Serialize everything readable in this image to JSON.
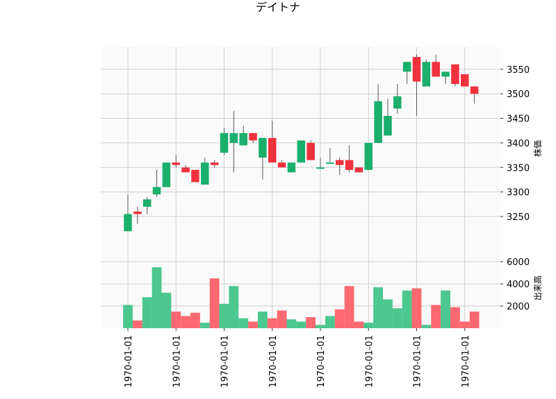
{
  "chart_data": {
    "type": "candlestick",
    "title": "デイトナ",
    "price_panel": {
      "ylabel": "株価",
      "ylim": [
        3185,
        3595
      ],
      "yticks": [
        3250,
        3300,
        3350,
        3400,
        3450,
        3500,
        3550
      ],
      "grid": true
    },
    "volume_panel": {
      "ylabel": "出来高",
      "ylim": [
        0,
        7200
      ],
      "yticks": [
        2000,
        4000,
        6000
      ],
      "grid": true
    },
    "x_tick_labels": [
      "1970-01-01",
      "1970-01-01",
      "1970-01-01",
      "1970-01-01",
      "1970-01-01",
      "1970-01-01",
      "1970-01-01",
      "1970-01-01"
    ],
    "x_tick_positions": [
      0,
      5,
      10,
      15,
      20,
      25,
      30,
      35
    ],
    "colors": {
      "up": "#1aaf6c",
      "down": "#f0313e",
      "volume_up": "#4cc790",
      "volume_down": "#fc6970",
      "wick": "#555555",
      "panel_bg": "#fafafa",
      "grid": "#d0d0d0"
    },
    "candles": [
      {
        "o": 3220,
        "h": 3295,
        "l": 3220,
        "c": 3255,
        "v": 2100
      },
      {
        "o": 3260,
        "h": 3270,
        "l": 3235,
        "c": 3255,
        "v": 700
      },
      {
        "o": 3270,
        "h": 3290,
        "l": 3255,
        "c": 3285,
        "v": 2800
      },
      {
        "o": 3295,
        "h": 3345,
        "l": 3290,
        "c": 3310,
        "v": 5500
      },
      {
        "o": 3310,
        "h": 3360,
        "l": 3310,
        "c": 3360,
        "v": 3200
      },
      {
        "o": 3360,
        "h": 3375,
        "l": 3350,
        "c": 3355,
        "v": 1500
      },
      {
        "o": 3350,
        "h": 3355,
        "l": 3340,
        "c": 3340,
        "v": 1100
      },
      {
        "o": 3345,
        "h": 3345,
        "l": 3320,
        "c": 3320,
        "v": 1400
      },
      {
        "o": 3315,
        "h": 3370,
        "l": 3315,
        "c": 3360,
        "v": 500
      },
      {
        "o": 3360,
        "h": 3365,
        "l": 3350,
        "c": 3355,
        "v": 4500
      },
      {
        "o": 3380,
        "h": 3430,
        "l": 3375,
        "c": 3420,
        "v": 2200
      },
      {
        "o": 3400,
        "h": 3465,
        "l": 3340,
        "c": 3420,
        "v": 3800
      },
      {
        "o": 3395,
        "h": 3435,
        "l": 3395,
        "c": 3420,
        "v": 900
      },
      {
        "o": 3420,
        "h": 3420,
        "l": 3400,
        "c": 3405,
        "v": 600
      },
      {
        "o": 3370,
        "h": 3410,
        "l": 3325,
        "c": 3410,
        "v": 1500
      },
      {
        "o": 3410,
        "h": 3445,
        "l": 3360,
        "c": 3360,
        "v": 900
      },
      {
        "o": 3360,
        "h": 3365,
        "l": 3350,
        "c": 3350,
        "v": 1600
      },
      {
        "o": 3340,
        "h": 3360,
        "l": 3340,
        "c": 3360,
        "v": 800
      },
      {
        "o": 3360,
        "h": 3405,
        "l": 3360,
        "c": 3405,
        "v": 600
      },
      {
        "o": 3400,
        "h": 3405,
        "l": 3365,
        "c": 3365,
        "v": 1000
      },
      {
        "o": 3350,
        "h": 3370,
        "l": 3350,
        "c": 3350,
        "v": 300
      },
      {
        "o": 3360,
        "h": 3390,
        "l": 3360,
        "c": 3360,
        "v": 1100
      },
      {
        "o": 3365,
        "h": 3370,
        "l": 3335,
        "c": 3355,
        "v": 1700
      },
      {
        "o": 3365,
        "h": 3395,
        "l": 3340,
        "c": 3345,
        "v": 3800
      },
      {
        "o": 3350,
        "h": 3350,
        "l": 3340,
        "c": 3340,
        "v": 600
      },
      {
        "o": 3345,
        "h": 3400,
        "l": 3345,
        "c": 3400,
        "v": 500
      },
      {
        "o": 3400,
        "h": 3520,
        "l": 3400,
        "c": 3485,
        "v": 3700
      },
      {
        "o": 3415,
        "h": 3490,
        "l": 3415,
        "c": 3455,
        "v": 2600
      },
      {
        "o": 3470,
        "h": 3520,
        "l": 3460,
        "c": 3495,
        "v": 1800
      },
      {
        "o": 3545,
        "h": 3565,
        "l": 3520,
        "c": 3565,
        "v": 3400
      },
      {
        "o": 3575,
        "h": 3580,
        "l": 3455,
        "c": 3525,
        "v": 3600
      },
      {
        "o": 3515,
        "h": 3570,
        "l": 3515,
        "c": 3565,
        "v": 300
      },
      {
        "o": 3565,
        "h": 3580,
        "l": 3535,
        "c": 3535,
        "v": 2100
      },
      {
        "o": 3535,
        "h": 3545,
        "l": 3520,
        "c": 3545,
        "v": 3400
      },
      {
        "o": 3560,
        "h": 3560,
        "l": 3515,
        "c": 3520,
        "v": 1900
      },
      {
        "o": 3540,
        "h": 3540,
        "l": 3515,
        "c": 3515,
        "v": 600
      },
      {
        "o": 3515,
        "h": 3515,
        "l": 3480,
        "c": 3500,
        "v": 1500
      }
    ]
  }
}
